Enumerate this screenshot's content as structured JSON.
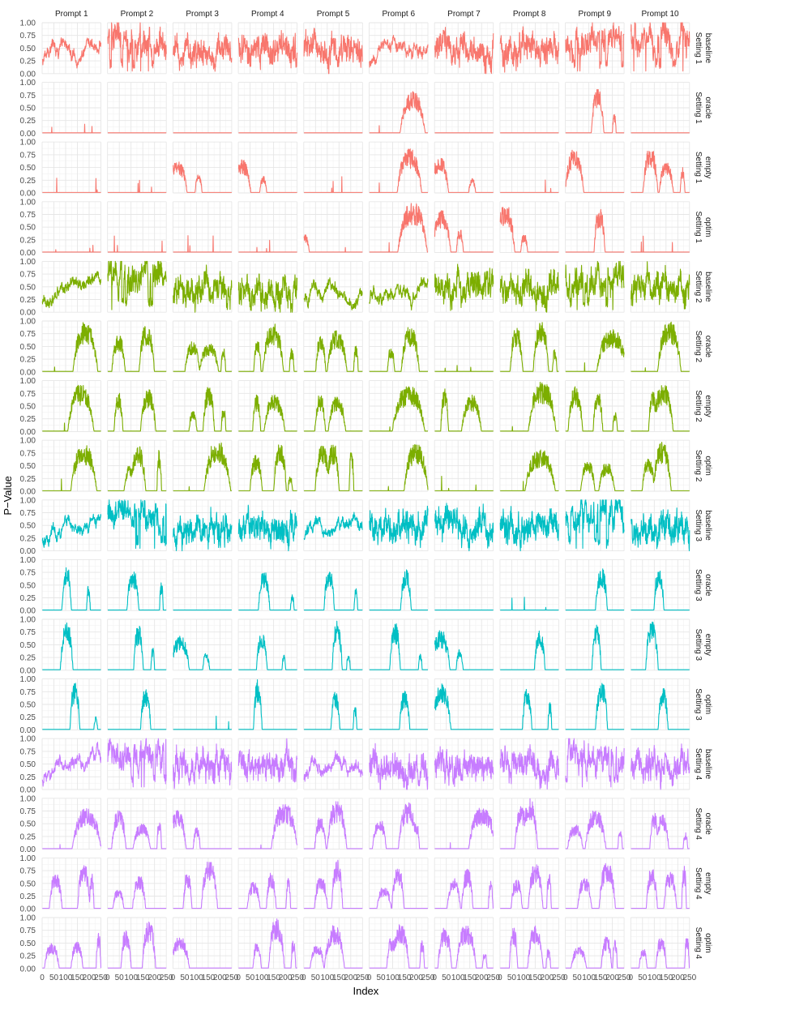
{
  "chart_data": {
    "type": "line",
    "facet_layout": "grid",
    "xlabel": "Index",
    "ylabel": "P−Value",
    "xlim": [
      0,
      250
    ],
    "ylim": [
      0,
      1
    ],
    "x_ticks": [
      0,
      50,
      100,
      150,
      200,
      250
    ],
    "x_tick_labels": [
      "0",
      "50",
      "100",
      "150",
      "200",
      "250"
    ],
    "y_ticks": [
      0,
      0.25,
      0.5,
      0.75,
      1.0
    ],
    "y_tick_labels": [
      "0.00",
      "0.25",
      "0.50",
      "0.75",
      "1.00"
    ],
    "grid": true,
    "legend": "none",
    "columns": [
      "Prompt 1",
      "Prompt 2",
      "Prompt 3",
      "Prompt 4",
      "Prompt 5",
      "Prompt 6",
      "Prompt 7",
      "Prompt 8",
      "Prompt 9",
      "Prompt 10"
    ],
    "settings": [
      {
        "name": "Setting 1",
        "color": "#F8766D"
      },
      {
        "name": "Setting 2",
        "color": "#7CAE00"
      },
      {
        "name": "Setting 3",
        "color": "#00BFC4"
      },
      {
        "name": "Setting 4",
        "color": "#C77CFF"
      }
    ],
    "methods": [
      "baseline",
      "oracle",
      "empty",
      "optim"
    ],
    "series_n_points": 250,
    "series_values_note": "Each panel is a noisy p-value trace over index 1..250; traces are approximated from the figure.",
    "panel_profiles": {
      "Setting 1": {
        "baseline": [
          "lo",
          "hi",
          "mid",
          "mid",
          "mid",
          "lo",
          "mid",
          "mid",
          "hi",
          "hi"
        ],
        "oracle": [
          "s",
          "z",
          "z",
          "z",
          "z",
          "late",
          "z",
          "z",
          "pk",
          "z"
        ],
        "empty": [
          "s",
          "s",
          "early",
          "early",
          "s",
          "late",
          "early",
          "s",
          "early",
          "mid_s"
        ],
        "optim": [
          "s",
          "s",
          "s",
          "s",
          "early_s",
          "late",
          "early",
          "early",
          "pk",
          "s"
        ]
      },
      "Setting 2": {
        "baseline": [
          "lo",
          "hi",
          "mid",
          "mid",
          "lo",
          "lo",
          "mid",
          "mid",
          "hi",
          "mid"
        ],
        "oracle": [
          "late",
          "mid_s",
          "mid_s",
          "mid_s",
          "mid_s",
          "mid_s",
          "s",
          "mid_s",
          "late",
          "late"
        ],
        "empty": [
          "late",
          "mid_s",
          "mid_s",
          "mid_s",
          "mid_s",
          "late",
          "mid_s",
          "late",
          "mid_s",
          "mid_s"
        ],
        "optim": [
          "late",
          "mid_s",
          "late",
          "mid_s",
          "mid_s",
          "late",
          "s",
          "late",
          "mid_s",
          "mid_s"
        ]
      },
      "Setting 3": {
        "baseline": [
          "lo",
          "hi",
          "mid",
          "mid",
          "lo",
          "mid",
          "mid",
          "mid",
          "hi",
          "mid"
        ],
        "oracle": [
          "pk",
          "pk",
          "z",
          "pk",
          "pk",
          "pk",
          "z",
          "s",
          "pk",
          "pk"
        ],
        "empty": [
          "pk",
          "pk",
          "early",
          "pk",
          "pk",
          "pk",
          "early",
          "pk",
          "pk",
          "pk"
        ],
        "optim": [
          "pk",
          "pk",
          "s",
          "pk",
          "pk",
          "pk",
          "early",
          "pk",
          "pk",
          "pk"
        ]
      },
      "Setting 4": {
        "baseline": [
          "lo",
          "hi",
          "mid",
          "mid",
          "lo",
          "mid",
          "mid",
          "mid",
          "hi",
          "mid"
        ],
        "oracle": [
          "late",
          "mid_s",
          "early",
          "late",
          "mid_s",
          "mid_s",
          "late",
          "mid_s",
          "mid_s",
          "mid_s"
        ],
        "empty": [
          "mid_s",
          "mid_s",
          "mid_s",
          "mid_s",
          "mid_s",
          "mid_s",
          "mid_s",
          "mid_s",
          "mid_s",
          "mid_s"
        ],
        "optim": [
          "mid_s",
          "mid_s",
          "early",
          "mid_s",
          "mid_s",
          "mid_s",
          "mid_s",
          "mid_s",
          "mid_s",
          "mid_s"
        ]
      }
    }
  }
}
